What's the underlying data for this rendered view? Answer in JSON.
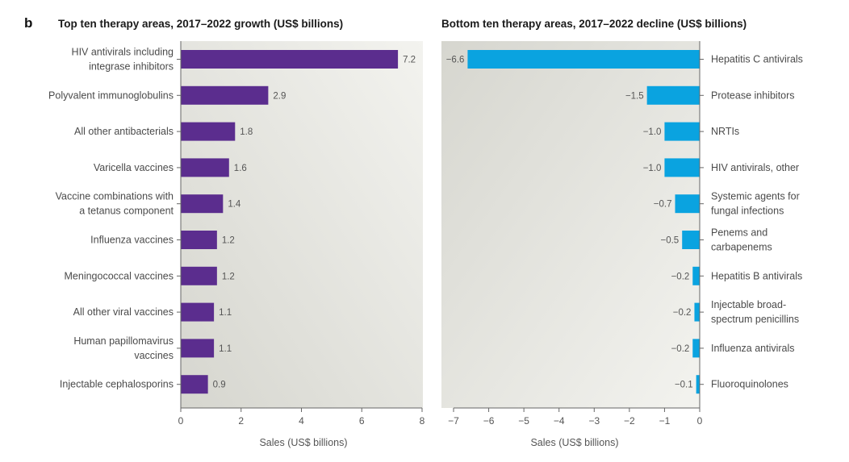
{
  "panel_letter": "b",
  "chart_data": [
    {
      "type": "bar",
      "orientation": "horizontal",
      "title": "Top ten therapy areas, 2017–2022 growth (US$ billions)",
      "xlabel": "Sales (US$ billions)",
      "xlim": [
        0,
        8
      ],
      "xticks": [
        0,
        2,
        4,
        6,
        8
      ],
      "categories": [
        "HIV antivirals including integrase inhibitors",
        "Polyvalent immunoglobulins",
        "All other antibacterials",
        "Varicella vaccines",
        "Vaccine combinations with a tetanus component",
        "Influenza vaccines",
        "Meningococcal vaccines",
        "All other viral vaccines",
        "Human papillomavirus vaccines",
        "Injectable cephalosporins"
      ],
      "category_lines": [
        [
          "HIV antivirals including",
          "integrase inhibitors"
        ],
        [
          "Polyvalent immunoglobulins"
        ],
        [
          "All other antibacterials"
        ],
        [
          "Varicella vaccines"
        ],
        [
          "Vaccine combinations with",
          "a tetanus component"
        ],
        [
          "Influenza vaccines"
        ],
        [
          "Meningococcal vaccines"
        ],
        [
          "All other viral vaccines"
        ],
        [
          "Human papillomavirus",
          "vaccines"
        ],
        [
          "Injectable cephalosporins"
        ]
      ],
      "values": [
        7.2,
        2.9,
        1.8,
        1.6,
        1.4,
        1.2,
        1.2,
        1.1,
        1.1,
        0.9
      ],
      "value_labels": [
        "7.2",
        "2.9",
        "1.8",
        "1.6",
        "1.4",
        "1.2",
        "1.2",
        "1.1",
        "1.1",
        "0.9"
      ],
      "color": "#5b2d8e",
      "grid": false
    },
    {
      "type": "bar",
      "orientation": "horizontal",
      "title": "Bottom ten therapy areas, 2017–2022 decline (US$ billions)",
      "xlabel": "Sales (US$ billions)",
      "xlim": [
        -7,
        0
      ],
      "xticks": [
        -7,
        -6,
        -5,
        -4,
        -3,
        -2,
        -1,
        0
      ],
      "xtick_labels": [
        "−7",
        "−6",
        "−5",
        "−4",
        "−3",
        "−2",
        "−1",
        "0"
      ],
      "categories": [
        "Hepatitis C antivirals",
        "Protease inhibitors",
        "NRTIs",
        "HIV antivirals, other",
        "Systemic agents for fungal infections",
        "Penems and carbapenems",
        "Hepatitis B antivirals",
        "Injectable broad-spectrum penicillins",
        "Influenza antivirals",
        "Fluoroquinolones"
      ],
      "category_lines": [
        [
          "Hepatitis C antivirals"
        ],
        [
          "Protease inhibitors"
        ],
        [
          "NRTIs"
        ],
        [
          "HIV antivirals, other"
        ],
        [
          "Systemic agents for",
          "fungal infections"
        ],
        [
          "Penems and",
          "carbapenems"
        ],
        [
          "Hepatitis B antivirals"
        ],
        [
          "Injectable broad-",
          "spectrum penicillins"
        ],
        [
          "Influenza antivirals"
        ],
        [
          "Fluoroquinolones"
        ]
      ],
      "values": [
        -6.6,
        -1.5,
        -1.0,
        -1.0,
        -0.7,
        -0.5,
        -0.2,
        -0.15,
        -0.2,
        -0.1
      ],
      "value_labels": [
        "−6.6",
        "−1.5",
        "−1.0",
        "−1.0",
        "−0.7",
        "−0.5",
        "−0.2",
        "−0.2",
        "−0.2",
        "−0.1"
      ],
      "color": "#0aa3e0",
      "grid": false
    }
  ],
  "colors": {
    "panel_bg_dark": "#d6d6cf",
    "panel_bg_light": "#f3f3ef",
    "axis": "#666666"
  }
}
